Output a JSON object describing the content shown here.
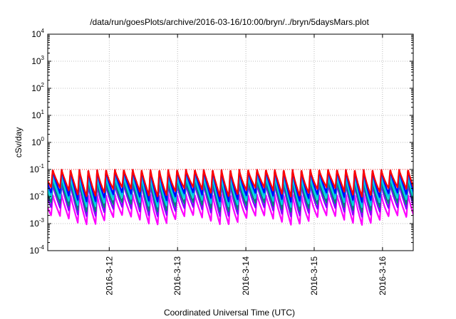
{
  "chart_data": {
    "type": "line",
    "title": "/data/run/goesPlots/archive/2016-03-16/10:00/bryn/../bryn/5daysMars.plot",
    "xlabel": "Coordinated Universal Time (UTC)",
    "ylabel": "cSv/day",
    "y_scale": "log",
    "ylim": [
      0.0001,
      10000
    ],
    "xlim": [
      11.1,
      16.45
    ],
    "grid": true,
    "y_ticks": [
      {
        "base": "10",
        "exp": "-4",
        "value": 0.0001
      },
      {
        "base": "10",
        "exp": "-3",
        "value": 0.001
      },
      {
        "base": "10",
        "exp": "-2",
        "value": 0.01
      },
      {
        "base": "10",
        "exp": "-1",
        "value": 0.1
      },
      {
        "base": "10",
        "exp": "0",
        "value": 1
      },
      {
        "base": "10",
        "exp": "1",
        "value": 10
      },
      {
        "base": "10",
        "exp": "2",
        "value": 100
      },
      {
        "base": "10",
        "exp": "3",
        "value": 1000
      },
      {
        "base": "10",
        "exp": "4",
        "value": 10000
      }
    ],
    "x_ticks": [
      {
        "label": "2016-3-12",
        "value": 12
      },
      {
        "label": "2016-3-13",
        "value": 13
      },
      {
        "label": "2016-3-14",
        "value": 14
      },
      {
        "label": "2016-3-15",
        "value": 15
      },
      {
        "label": "2016-3-16",
        "value": 16
      }
    ],
    "series": [
      {
        "color": "#ff0000",
        "peak": 0.1,
        "low": 0.022
      },
      {
        "color": "#0000ff",
        "peak": 0.1,
        "low": 0.014
      },
      {
        "color": "#00aaff",
        "peak": 0.075,
        "low": 0.012
      },
      {
        "color": "#00dddd",
        "peak": 0.055,
        "low": 0.009
      },
      {
        "color": "#008080",
        "peak": 0.04,
        "low": 0.006
      },
      {
        "color": "#8000ff",
        "peak": 0.03,
        "low": 0.004
      },
      {
        "color": "#ff00ff",
        "peak": 0.012,
        "low": 0.002
      }
    ],
    "period_days": 0.13
  }
}
